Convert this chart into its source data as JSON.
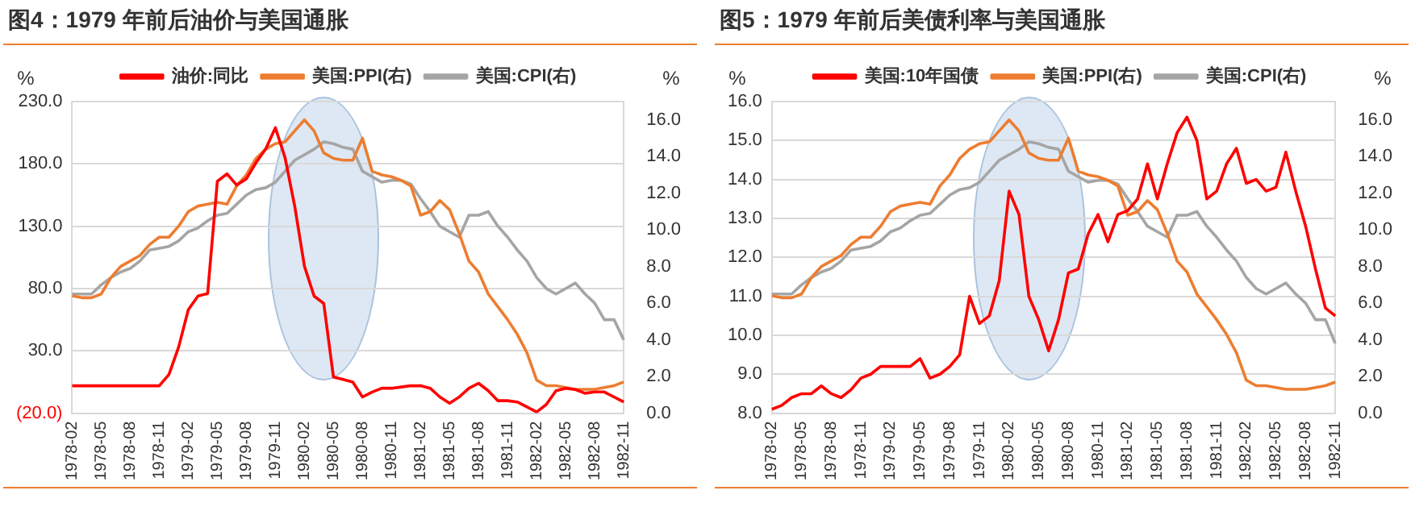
{
  "chart_data": [
    {
      "type": "line",
      "title": "图4：1979 年前后油价与美国通胀",
      "ylabel": "%",
      "y2label": "%",
      "categories": [
        "1978-02",
        null,
        null,
        "1978-05",
        null,
        null,
        "1978-08",
        null,
        null,
        "1978-11",
        null,
        null,
        "1979-02",
        null,
        null,
        "1979-05",
        null,
        null,
        "1979-08",
        null,
        null,
        "1979-11",
        null,
        null,
        "1980-02",
        null,
        null,
        "1980-05",
        null,
        null,
        "1980-08",
        null,
        null,
        "1980-11",
        null,
        null,
        "1981-02",
        null,
        null,
        "1981-05",
        null,
        null,
        "1981-08",
        null,
        null,
        "1981-11",
        null,
        null,
        "1982-02",
        null,
        null,
        "1982-05",
        null,
        null,
        "1982-08",
        null,
        null,
        "1982-11"
      ],
      "series": [
        {
          "name": "油价:同比",
          "color": "#ff0000",
          "values": [
            2,
            2,
            2,
            2,
            2,
            2,
            2,
            2,
            2,
            2,
            11,
            33,
            63,
            74,
            76,
            166,
            172,
            163,
            168,
            181,
            192,
            209,
            185,
            146,
            98,
            74,
            68,
            9,
            7,
            5,
            -7,
            -3,
            0,
            0,
            1,
            2,
            2,
            0,
            -7,
            -12,
            -7,
            0,
            4,
            -2,
            -10,
            -10,
            -11,
            -15,
            -19,
            -13,
            -2,
            0,
            -1,
            -4,
            -3,
            -3,
            -7,
            -11
          ]
        },
        {
          "name": "美国:PPI(右)",
          "color": "#ed7d31",
          "axis": "y2",
          "values": [
            6.4,
            6.3,
            6.3,
            6.5,
            7.4,
            8.0,
            8.3,
            8.6,
            9.2,
            9.6,
            9.6,
            10.2,
            11.0,
            11.3,
            11.4,
            11.5,
            11.4,
            12.4,
            13.0,
            13.9,
            14.4,
            14.7,
            14.8,
            15.4,
            16.0,
            15.4,
            14.2,
            13.9,
            13.8,
            13.8,
            15.0,
            13.2,
            13.0,
            12.9,
            12.7,
            12.4,
            10.8,
            11.0,
            11.6,
            11.1,
            9.8,
            8.3,
            7.7,
            6.5,
            5.8,
            5.1,
            4.3,
            3.3,
            1.8,
            1.5,
            1.5,
            1.4,
            1.3,
            1.3,
            1.3,
            1.4,
            1.5,
            1.7
          ]
        },
        {
          "name": "美国:CPI(右)",
          "color": "#a5a5a5",
          "axis": "y2",
          "values": [
            6.5,
            6.5,
            6.5,
            7.0,
            7.4,
            7.7,
            7.9,
            8.3,
            8.9,
            9.0,
            9.1,
            9.4,
            9.9,
            10.1,
            10.5,
            10.8,
            10.9,
            11.4,
            11.9,
            12.2,
            12.3,
            12.6,
            13.2,
            13.8,
            14.1,
            14.4,
            14.8,
            14.7,
            14.5,
            14.4,
            13.2,
            12.9,
            12.6,
            12.7,
            12.7,
            12.5,
            11.7,
            11.0,
            10.2,
            9.9,
            9.6,
            10.8,
            10.8,
            11.0,
            10.2,
            9.6,
            8.9,
            8.3,
            7.4,
            6.8,
            6.5,
            6.8,
            7.1,
            6.5,
            6.0,
            5.1,
            5.1,
            4.0
          ]
        }
      ],
      "ylim": [
        -20,
        230
      ],
      "yticks": [
        {
          "value": -20,
          "label": "(20.0)"
        },
        {
          "value": 30,
          "label": "30.0"
        },
        {
          "value": 80,
          "label": "80.0"
        },
        {
          "value": 130,
          "label": "130.0"
        },
        {
          "value": 180,
          "label": "180.0"
        },
        {
          "value": 230,
          "label": "230.0"
        }
      ],
      "y2lim": [
        0,
        17
      ],
      "y2ticks": [
        {
          "value": 0,
          "label": "0.0"
        },
        {
          "value": 2,
          "label": "2.0"
        },
        {
          "value": 4,
          "label": "4.0"
        },
        {
          "value": 6,
          "label": "6.0"
        },
        {
          "value": 8,
          "label": "8.0"
        },
        {
          "value": 10,
          "label": "10.0"
        },
        {
          "value": 12,
          "label": "12.0"
        },
        {
          "value": 14,
          "label": "14.0"
        },
        {
          "value": 16,
          "label": "16.0"
        }
      ],
      "grid": "y",
      "legend": "top",
      "marker": "none",
      "line_style": "solid"
    },
    {
      "type": "line",
      "title": "图5：1979 年前后美债利率与美国通胀",
      "ylabel": "%",
      "y2label": "%",
      "categories": [
        "1978-02",
        null,
        null,
        "1978-05",
        null,
        null,
        "1978-08",
        null,
        null,
        "1978-11",
        null,
        null,
        "1979-02",
        null,
        null,
        "1979-05",
        null,
        null,
        "1979-08",
        null,
        null,
        "1979-11",
        null,
        null,
        "1980-02",
        null,
        null,
        "1980-05",
        null,
        null,
        "1980-08",
        null,
        null,
        "1980-11",
        null,
        null,
        "1981-02",
        null,
        null,
        "1981-05",
        null,
        null,
        "1981-08",
        null,
        null,
        "1981-11",
        null,
        null,
        "1982-02",
        null,
        null,
        "1982-05",
        null,
        null,
        "1982-08",
        null,
        null,
        "1982-11"
      ],
      "series": [
        {
          "name": "美国:10年国债",
          "color": "#ff0000",
          "values": [
            8.1,
            8.2,
            8.4,
            8.5,
            8.5,
            8.7,
            8.5,
            8.4,
            8.6,
            8.9,
            9.0,
            9.2,
            9.2,
            9.2,
            9.2,
            9.4,
            8.9,
            9.0,
            9.2,
            9.5,
            11.0,
            10.3,
            10.5,
            11.4,
            13.7,
            13.1,
            11.0,
            10.4,
            9.6,
            10.4,
            11.6,
            11.7,
            12.6,
            13.1,
            12.4,
            13.1,
            13.2,
            13.5,
            14.4,
            13.5,
            14.4,
            15.2,
            15.6,
            15.0,
            13.5,
            13.7,
            14.4,
            14.8,
            13.9,
            14.0,
            13.7,
            13.8,
            14.7,
            13.7,
            12.8,
            11.7,
            10.7,
            10.5
          ]
        },
        {
          "name": "美国:PPI(右)",
          "color": "#ed7d31",
          "axis": "y2",
          "values": [
            6.4,
            6.3,
            6.3,
            6.5,
            7.4,
            8.0,
            8.3,
            8.6,
            9.2,
            9.6,
            9.6,
            10.2,
            11.0,
            11.3,
            11.4,
            11.5,
            11.4,
            12.4,
            13.0,
            13.9,
            14.4,
            14.7,
            14.8,
            15.4,
            16.0,
            15.4,
            14.2,
            13.9,
            13.8,
            13.8,
            15.0,
            13.2,
            13.0,
            12.9,
            12.7,
            12.4,
            10.8,
            11.0,
            11.6,
            11.1,
            9.8,
            8.3,
            7.7,
            6.5,
            5.8,
            5.1,
            4.3,
            3.3,
            1.8,
            1.5,
            1.5,
            1.4,
            1.3,
            1.3,
            1.3,
            1.4,
            1.5,
            1.7
          ]
        },
        {
          "name": "美国:CPI(右)",
          "color": "#a5a5a5",
          "axis": "y2",
          "values": [
            6.5,
            6.5,
            6.5,
            7.0,
            7.4,
            7.7,
            7.9,
            8.3,
            8.9,
            9.0,
            9.1,
            9.4,
            9.9,
            10.1,
            10.5,
            10.8,
            10.9,
            11.4,
            11.9,
            12.2,
            12.3,
            12.6,
            13.2,
            13.8,
            14.1,
            14.4,
            14.8,
            14.7,
            14.5,
            14.4,
            13.2,
            12.9,
            12.6,
            12.7,
            12.7,
            12.5,
            11.7,
            11.0,
            10.2,
            9.9,
            9.6,
            10.8,
            10.8,
            11.0,
            10.2,
            9.6,
            8.9,
            8.3,
            7.4,
            6.8,
            6.5,
            6.8,
            7.1,
            6.5,
            6.0,
            5.1,
            5.1,
            3.8
          ]
        }
      ],
      "ylim": [
        8,
        16
      ],
      "yticks": [
        {
          "value": 8,
          "label": "8.0"
        },
        {
          "value": 9,
          "label": "9.0"
        },
        {
          "value": 10,
          "label": "10.0"
        },
        {
          "value": 11,
          "label": "11.0"
        },
        {
          "value": 12,
          "label": "12.0"
        },
        {
          "value": 13,
          "label": "13.0"
        },
        {
          "value": 14,
          "label": "14.0"
        },
        {
          "value": 15,
          "label": "15.0"
        },
        {
          "value": 16,
          "label": "16.0"
        }
      ],
      "y2lim": [
        0,
        17
      ],
      "y2ticks": [
        {
          "value": 0,
          "label": "0.0"
        },
        {
          "value": 2,
          "label": "2.0"
        },
        {
          "value": 4,
          "label": "4.0"
        },
        {
          "value": 6,
          "label": "6.0"
        },
        {
          "value": 8,
          "label": "8.0"
        },
        {
          "value": 10,
          "label": "10.0"
        },
        {
          "value": 12,
          "label": "12.0"
        },
        {
          "value": 14,
          "label": "14.0"
        },
        {
          "value": 16,
          "label": "16.0"
        }
      ],
      "grid": "y",
      "legend": "top",
      "marker": "none",
      "line_style": "solid"
    }
  ]
}
